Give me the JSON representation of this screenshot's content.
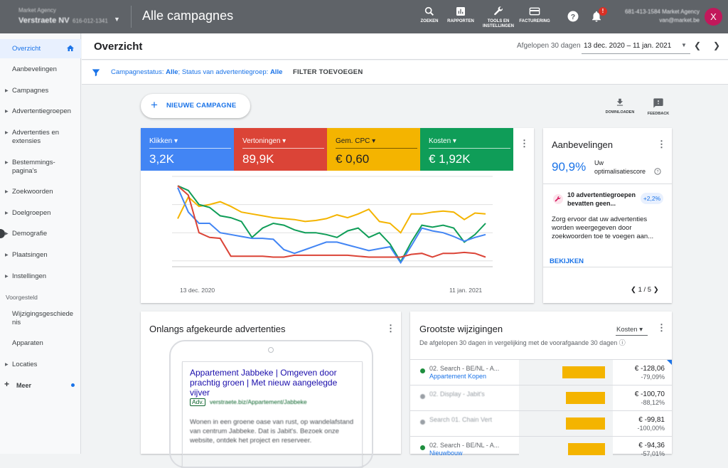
{
  "topbar": {
    "account_parent": "Market Agency",
    "account_name": "Verstraete NV",
    "account_id": "616-012-1341",
    "title": "Alle campagnes",
    "tools": [
      {
        "icon": "search-icon",
        "label": "ZOEKEN"
      },
      {
        "icon": "bar-chart-icon",
        "label": "RAPPORTEN"
      },
      {
        "icon": "wrench-icon",
        "label": "TOOLS EN\nINSTELLINGEN"
      },
      {
        "icon": "credit-card-icon",
        "label": "FACTURERING"
      }
    ],
    "notification_badge": "!",
    "user_line1": "681-413-1584 Market Agency",
    "user_line2": "van@market.be",
    "avatar_letter": "X"
  },
  "sidebar": {
    "items": [
      {
        "label": "Overzicht",
        "active": true
      },
      {
        "label": "Aanbevelingen"
      },
      {
        "label": "Campagnes"
      },
      {
        "label": "Advertentiegroepen"
      },
      {
        "label": "Advertenties en extensies"
      },
      {
        "label": "Bestemmings-pagina's"
      },
      {
        "label": "Zoekwoorden"
      },
      {
        "label": "Doelgroepen"
      },
      {
        "label": "Demografie"
      },
      {
        "label": "Plaatsingen"
      },
      {
        "label": "Instellingen"
      }
    ],
    "section_label": "Voorgesteld",
    "suggested": [
      {
        "label": "Wijzigingsgeschiedenis"
      },
      {
        "label": "Apparaten"
      },
      {
        "label": "Locaties"
      }
    ],
    "more_label": "Meer"
  },
  "header": {
    "page_title": "Overzicht",
    "date_range_label": "Afgelopen 30 dagen",
    "date_range_value": "13 dec. 2020 – 11 jan. 2021"
  },
  "filter": {
    "status_prefix": "Campagnestatus: ",
    "status_value": "Alle",
    "group_prefix": "; Status van advertentiegroep: ",
    "group_value": "Alle",
    "add_label": "FILTER TOEVOEGEN"
  },
  "actions": {
    "new_campaign": "NIEUWE CAMPAGNE",
    "download": "DOWNLOADEN",
    "feedback": "FEEDBACK"
  },
  "metrics": [
    {
      "label": "Klikken",
      "value": "3,2K",
      "color": "#4285f4"
    },
    {
      "label": "Vertoningen",
      "value": "89,9K",
      "color": "#db4437"
    },
    {
      "label": "Gem. CPC",
      "value": "€ 0,60",
      "color": "#f4b400"
    },
    {
      "label": "Kosten",
      "value": "€ 1,92K",
      "color": "#0f9d58"
    }
  ],
  "chart_data": {
    "type": "line",
    "x_start_label": "13 dec. 2020",
    "x_end_label": "11 jan. 2021",
    "note_values": "relative 0-100 per series, scaled independently",
    "series": [
      {
        "name": "Klikken",
        "color": "#4285f4",
        "values": [
          88,
          62,
          50,
          50,
          40,
          38,
          36,
          34,
          34,
          33,
          22,
          18,
          22,
          26,
          30,
          30,
          27,
          24,
          21,
          23,
          25,
          8,
          26,
          45,
          42,
          40,
          36,
          31,
          35,
          38
        ]
      },
      {
        "name": "Vertoningen",
        "color": "#db4437",
        "values": [
          90,
          80,
          40,
          35,
          34,
          15,
          15,
          15,
          15,
          14,
          14,
          16,
          16,
          16,
          16,
          16,
          16,
          15,
          14,
          14,
          14,
          14,
          17,
          18,
          14,
          18,
          18,
          19,
          18,
          14
        ]
      },
      {
        "name": "Gem. CPC",
        "color": "#f4b400",
        "values": [
          55,
          78,
          68,
          70,
          73,
          68,
          62,
          60,
          58,
          56,
          55,
          54,
          52,
          53,
          55,
          59,
          56,
          60,
          65,
          52,
          50,
          40,
          60,
          60,
          62,
          63,
          62,
          54,
          61,
          60
        ]
      },
      {
        "name": "Kosten",
        "color": "#0f9d58",
        "values": [
          90,
          85,
          70,
          67,
          58,
          56,
          52,
          35,
          45,
          50,
          48,
          43,
          40,
          40,
          38,
          35,
          42,
          45,
          35,
          40,
          28,
          9,
          30,
          48,
          46,
          48,
          45,
          30,
          38,
          50
        ]
      }
    ]
  },
  "recommendations": {
    "title": "Aanbevelingen",
    "score": "90,9%",
    "score_label": "Uw optimalisatiescore",
    "item_title": "10 advertentiegroepen bevatten geen...",
    "item_badge": "+2,2%",
    "item_desc": "Zorg ervoor dat uw advertenties worden weergegeven door zoekwoorden toe te voegen aan...",
    "view": "BEKIJKEN",
    "pager": "1 / 5"
  },
  "disapproved": {
    "title": "Onlangs afgekeurde advertenties",
    "ad_headline": "Appartement Jabbeke | Omgeven door prachtig groen | Met nieuw aangelegde vijver",
    "ad_badge": "Adv.",
    "ad_url": "verstraete.biz/Appartement/Jabbeke",
    "ad_desc_blurred": "Wonen in een groene oase van rust, op wandelafstand van centrum Jabbeke. Dat is Jabit's.",
    "ad_desc_clear": "Bezoek onze website, ontdek het project en reserveer."
  },
  "biggest_changes": {
    "title": "Grootste wijzigingen",
    "subtitle": "De afgelopen 30 dagen in vergelijking met de voorafgaande 30 dagen",
    "dropdown": "Kosten",
    "rows": [
      {
        "name1": "02. Search - BE/NL - A...",
        "name2": "Appartement Kopen",
        "value": "€ -128,06",
        "pct": "-79,09%",
        "bar": 100,
        "blurred": false
      },
      {
        "name1": "02. Display - Jabit's",
        "name2": "",
        "value": "€ -100,70",
        "pct": "-88,12%",
        "bar": 91,
        "blurred": true
      },
      {
        "name1": "Search 01. Chain Vert",
        "name2": "",
        "value": "€ -99,81",
        "pct": "-100,00%",
        "bar": 91,
        "blurred": true
      },
      {
        "name1": "02. Search - BE/NL - A...",
        "name2": "Nieuwbouw",
        "value": "€ -94,36",
        "pct": "-57,01%",
        "bar": 86,
        "blurred": false
      }
    ]
  }
}
